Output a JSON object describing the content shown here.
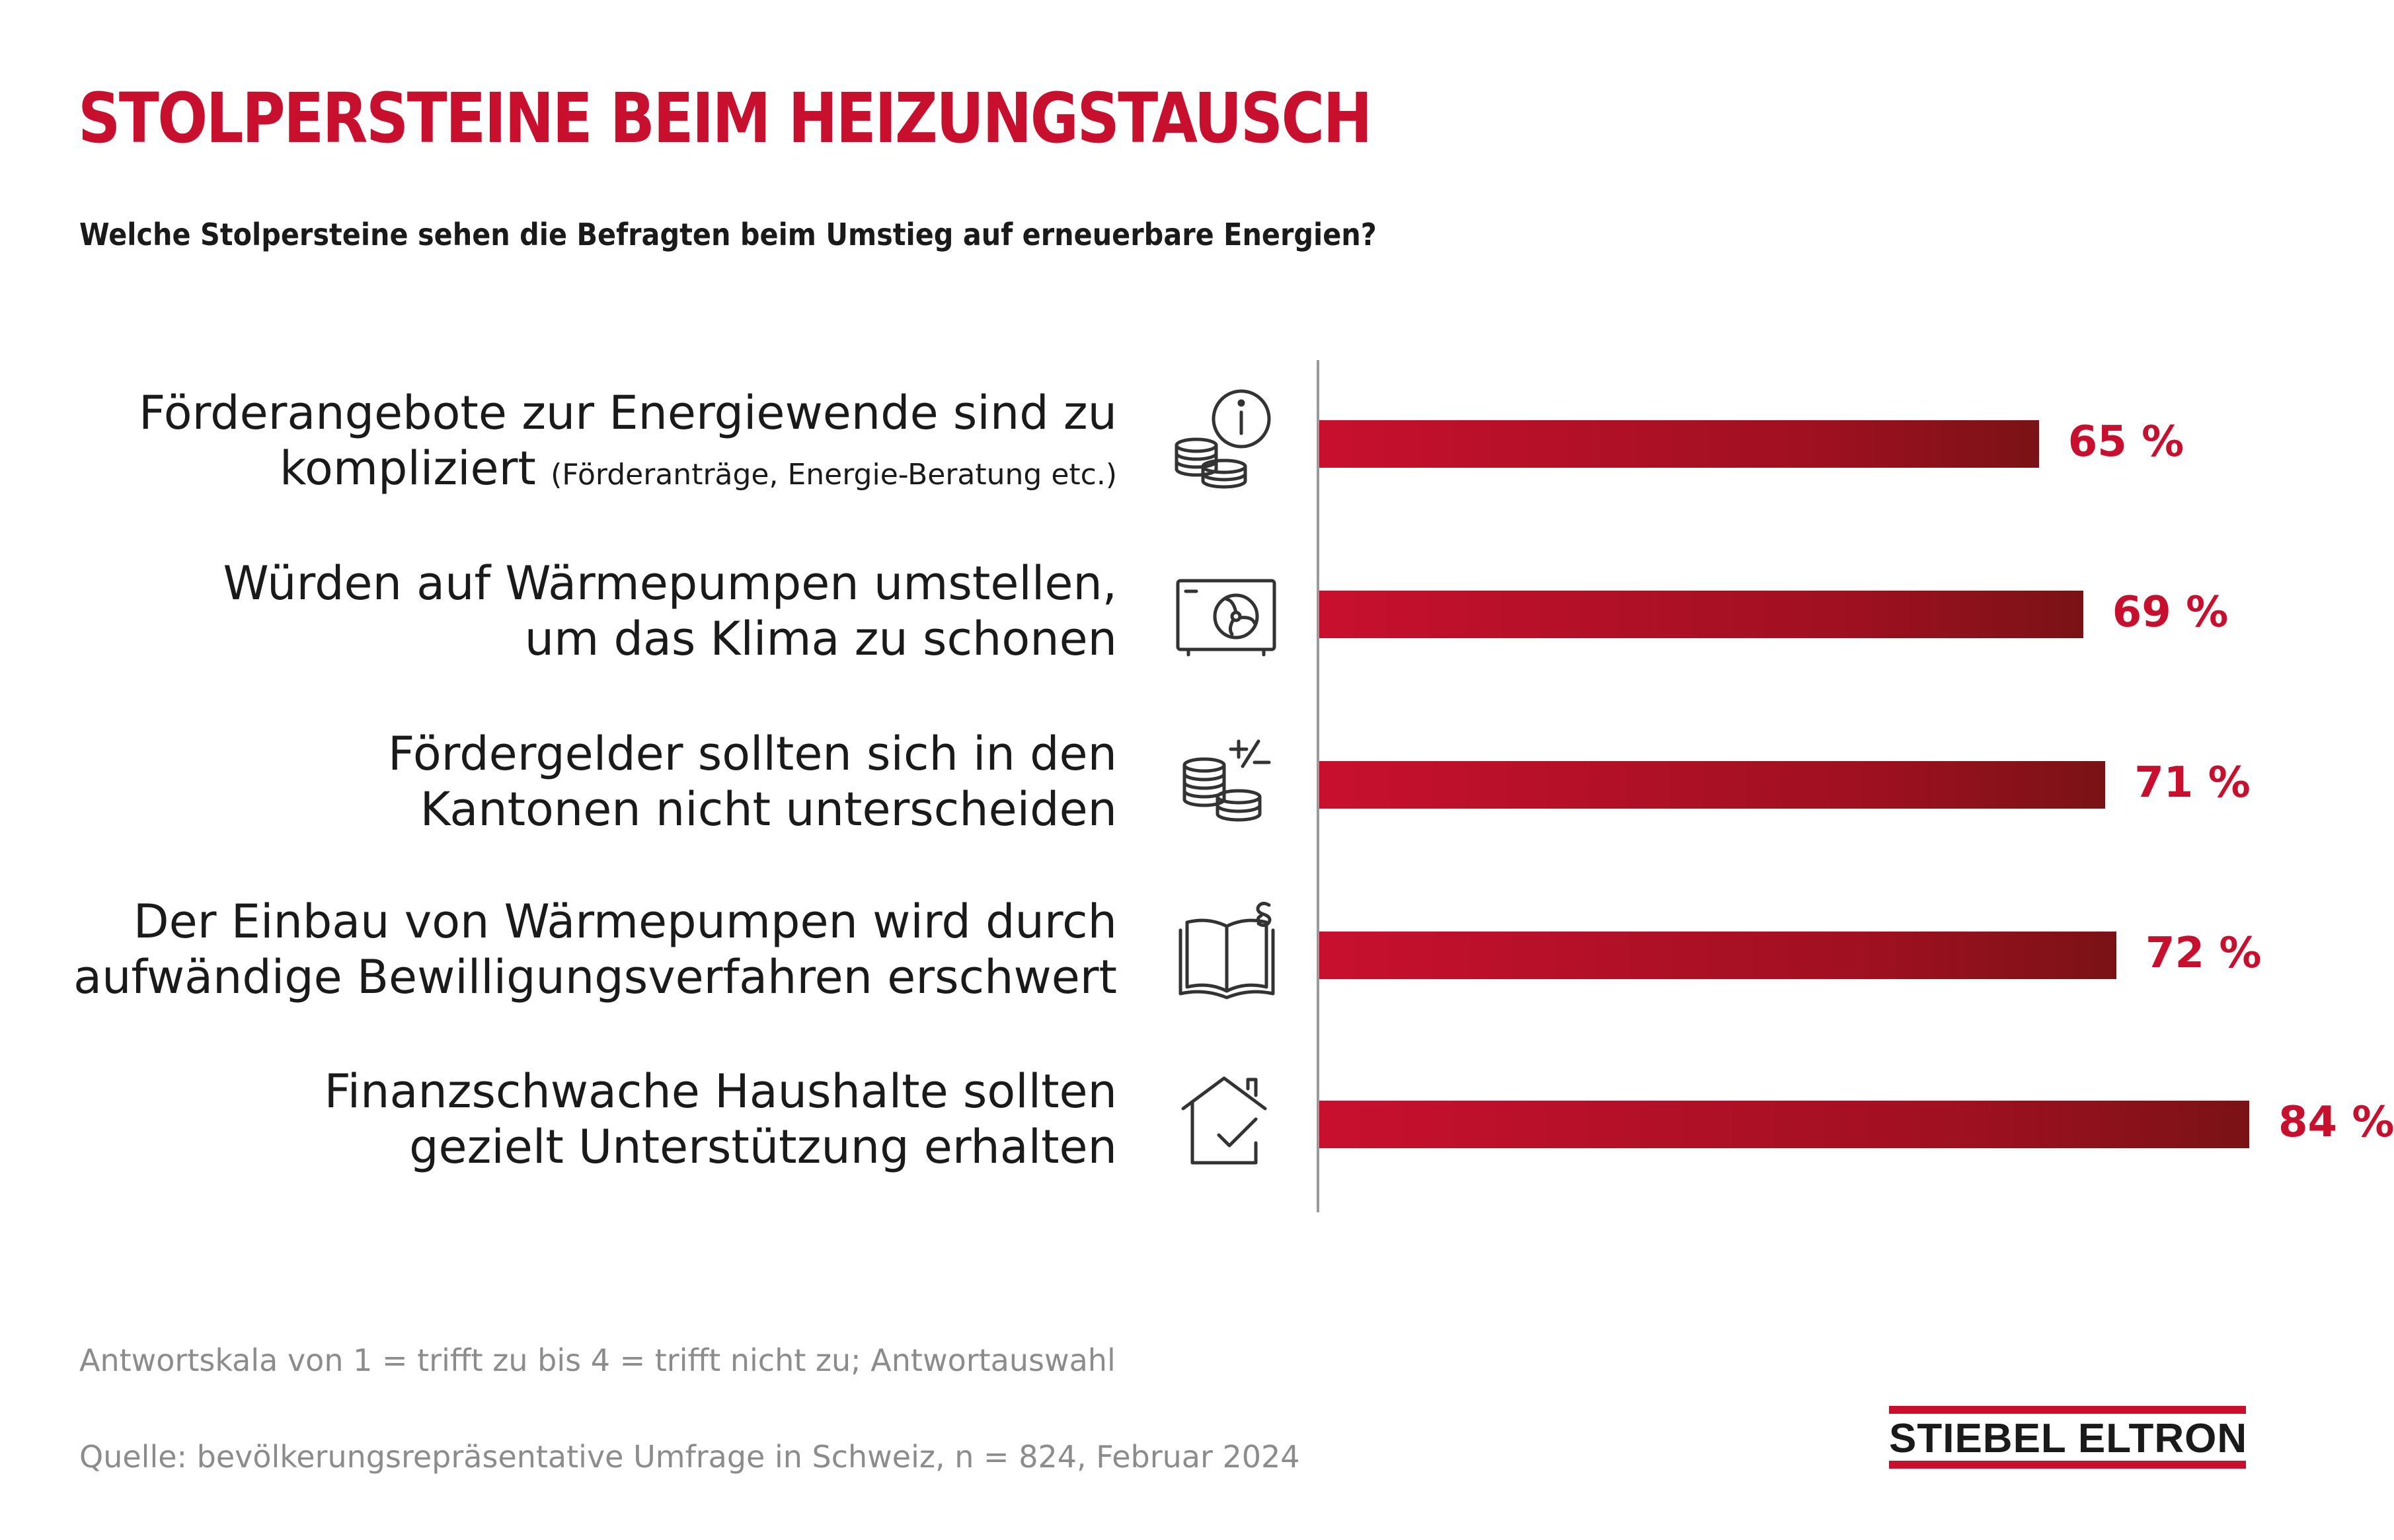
{
  "title": "STOLPERSTEINE BEIM HEIZUNGSTAUSCH",
  "subtitle": "Welche Stolpersteine sehen die Befragten beim Umstieg auf erneuerbare Energien?",
  "colors": {
    "accent": "#c8102e",
    "value_text": "#c8102e",
    "axis": "#9a9a9a",
    "note_text": "#8c8c8c"
  },
  "chart_data": {
    "type": "bar",
    "orientation": "horizontal",
    "categories": [
      {
        "line1": "Förderangebote zur Energiewende sind zu",
        "line2": "kompliziert",
        "line2_small": "(Förderanträge, Energie-Beratung etc.)",
        "icon": "coins-info-icon"
      },
      {
        "line1": "Würden auf Wärmepumpen umstellen,",
        "line2": "um das Klima zu schonen",
        "icon": "heat-pump-icon"
      },
      {
        "line1": "Fördergelder sollten sich in den",
        "line2": "Kantonen nicht unterscheiden",
        "icon": "coins-plus-minus-icon"
      },
      {
        "line1": "Der Einbau von Wärmepumpen wird durch",
        "line2": "aufwändige Bewilligungsverfahren erschwert",
        "icon": "law-book-icon"
      },
      {
        "line1": "Finanzschwache Haushalte sollten",
        "line2": "gezielt Unterstützung erhalten",
        "icon": "house-check-icon"
      }
    ],
    "values": [
      65,
      69,
      71,
      72,
      84
    ],
    "value_labels": [
      "65 %",
      "69 %",
      "71 %",
      "72 %",
      "84 %"
    ],
    "xlim": [
      0,
      100
    ],
    "grid": false,
    "legend": "none"
  },
  "footnotes": {
    "scale": "Antwortskala von 1 = trifft zu bis 4 = trifft nicht zu; Antwortauswahl",
    "source": "Quelle: bevölkerungsrepräsentative Umfrage in Schweiz, n = 824, Februar 2024"
  },
  "logo": {
    "text": "STIEBEL ELTRON"
  }
}
